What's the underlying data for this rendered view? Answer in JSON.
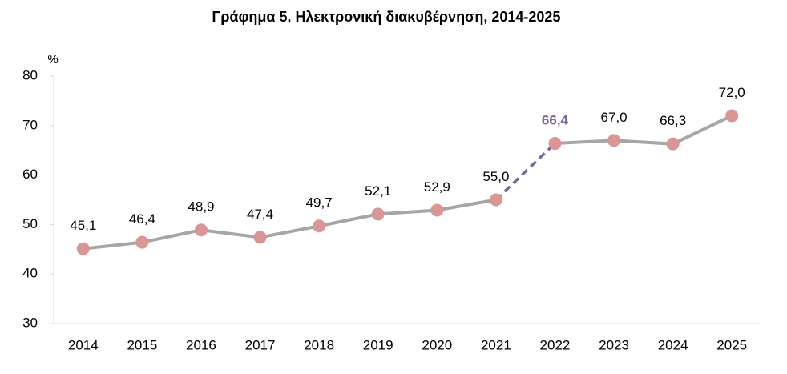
{
  "chart_data": {
    "type": "line",
    "title": "Γράφημα 5. Ηλεκτρονική διακυβέρνηση, 2014-2025",
    "y_label": "%",
    "categories": [
      "2014",
      "2015",
      "2016",
      "2017",
      "2018",
      "2019",
      "2020",
      "2021",
      "2022",
      "2023",
      "2024",
      "2025"
    ],
    "series": [
      {
        "color": "#a6a6a6",
        "marker_color": "#d99694",
        "values": [
          45.1,
          46.4,
          48.9,
          47.4,
          49.7,
          52.1,
          52.9,
          55.0,
          null,
          null,
          null,
          null
        ],
        "value_labels": [
          "45,1",
          "46,4",
          "48,9",
          "47,4",
          "49,7",
          "52,1",
          "52,9",
          "55,0",
          null,
          null,
          null,
          null
        ]
      },
      {
        "color": "#a6a6a6",
        "marker_color": "#d99694",
        "values": [
          null,
          null,
          null,
          null,
          null,
          null,
          null,
          null,
          66.4,
          67.0,
          66.3,
          72.0
        ],
        "value_labels": [
          null,
          null,
          null,
          null,
          null,
          null,
          null,
          null,
          "66,4",
          "67,0",
          "66,3",
          "72,0"
        ]
      }
    ],
    "connector_color": "#8064a2",
    "ylim": [
      30,
      80
    ],
    "yticks": [
      30,
      40,
      50,
      60,
      70,
      80
    ],
    "grid": false
  }
}
